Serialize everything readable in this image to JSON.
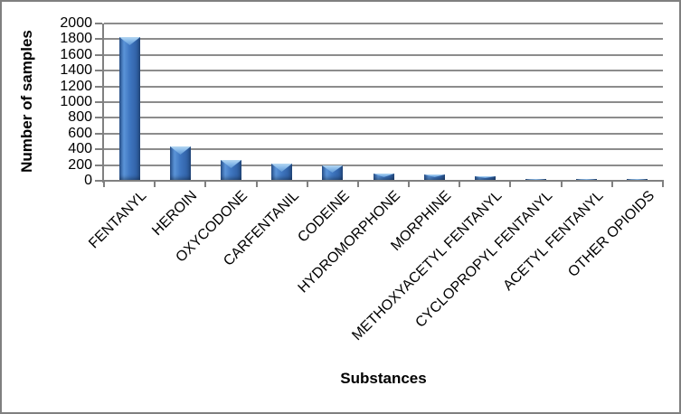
{
  "chart_data": {
    "type": "bar",
    "title": "",
    "xlabel": "Substances",
    "ylabel": "Number of samples",
    "categories": [
      "FENTANYL",
      "HEROIN",
      "OXYCODONE",
      "CARFENTANIL",
      "CODEINE",
      "HYDROMORPHONE",
      "MORPHINE",
      "METHOXYACETYL FENTANYL",
      "CYCLOPROPYL FENTANYL",
      "ACETYL FENTANYL",
      "OTHER OPIOIDS"
    ],
    "values": [
      1830,
      440,
      270,
      220,
      200,
      90,
      80,
      55,
      20,
      20,
      25
    ],
    "ylim": [
      0,
      2000
    ],
    "ytick_step": 200,
    "yticks": [
      2000,
      1800,
      1600,
      1400,
      1200,
      1000,
      800,
      600,
      400,
      200,
      0
    ],
    "grid": true,
    "legend_position": "none",
    "bar_style": "3d-bevel",
    "colors": {
      "bar_body": "#3A71BC",
      "bar_body_highlight": "#5B94D8",
      "bar_body_shadow": "#27518C",
      "bar_bevel_top": "#8ABBEA",
      "gridline": "#8C8C8C",
      "axis": "#808080",
      "frame_border": "#808080",
      "text": "#000000",
      "background": "#FFFFFF"
    }
  }
}
